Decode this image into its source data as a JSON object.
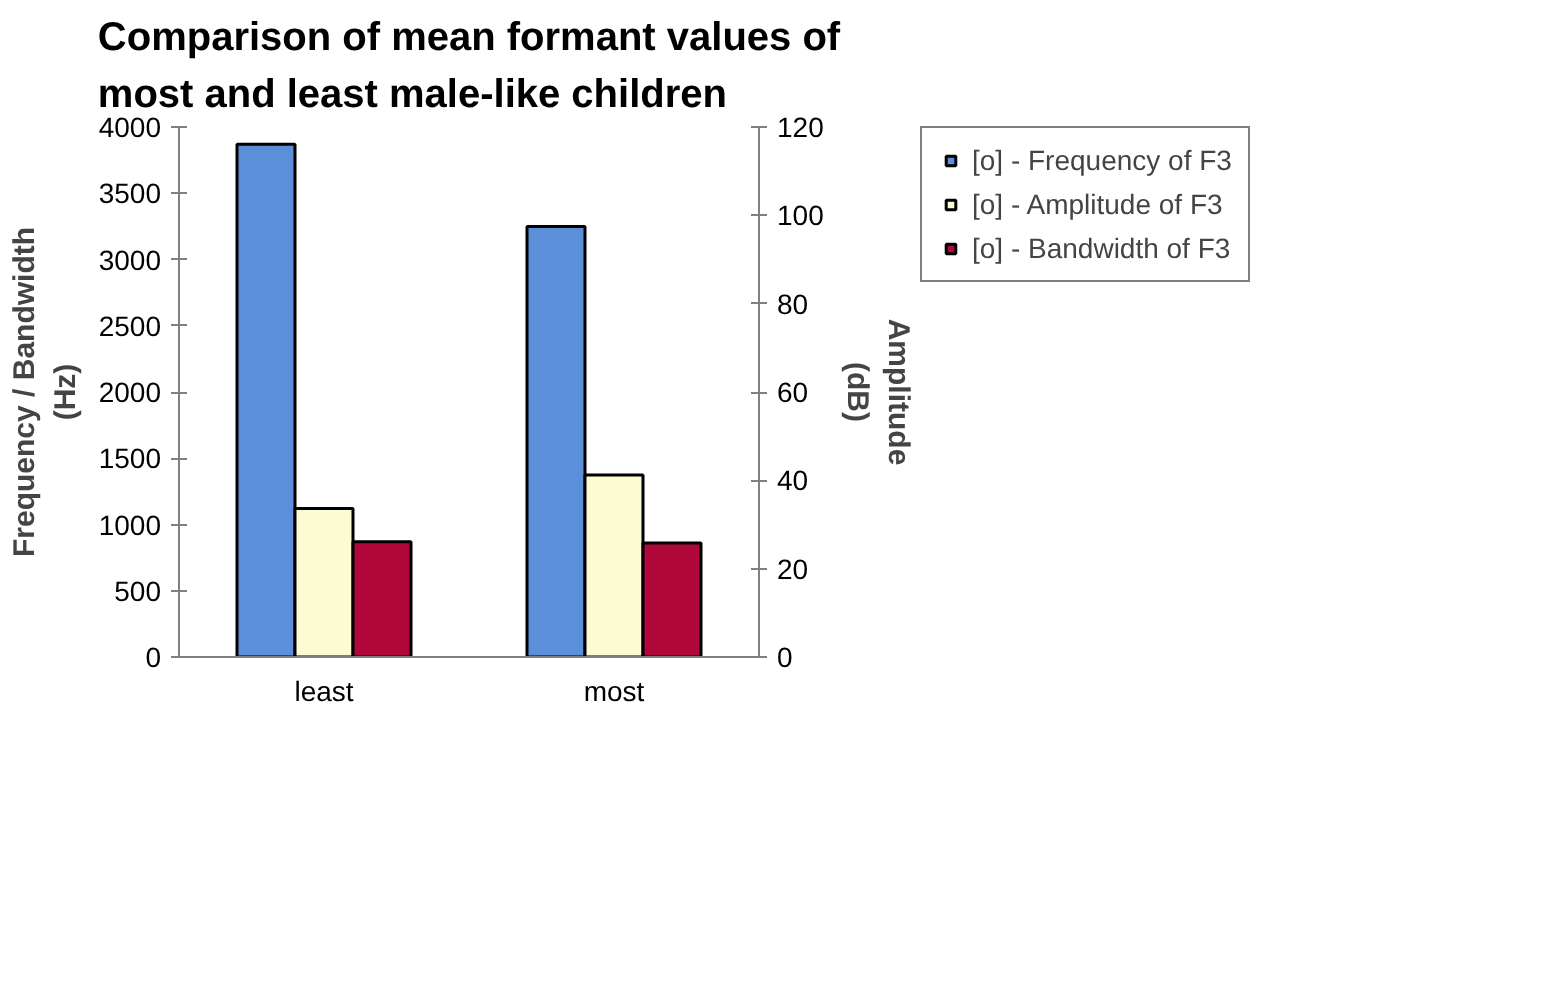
{
  "chart_data": {
    "type": "bar",
    "title": "Comparison of mean formant values of\nmost and least male-like children",
    "xlabel": null,
    "ylabel": "Frequency / Bandwidth\n(Hz)",
    "y2label": "Amplitude\n(dB)",
    "categories": [
      "least",
      "most"
    ],
    "series": [
      {
        "name": "[o] - Frequency of F3",
        "color": "#5b8fd9",
        "values": [
          3870,
          3250
        ]
      },
      {
        "name": "[o] - Amplitude of F3",
        "color": "#fdfbd4",
        "values": [
          33.6,
          41.2
        ],
        "axis": "y2"
      },
      {
        "name": "[o] - Bandwidth of F3",
        "color": "#b0083a",
        "values": [
          870,
          860
        ]
      }
    ],
    "ylim": [
      0,
      4000
    ],
    "yticks": [
      0,
      500,
      1000,
      1500,
      2000,
      2500,
      3000,
      3500,
      4000
    ],
    "y2lim": [
      0,
      120
    ],
    "y2ticks": [
      0,
      20,
      40,
      60,
      80,
      100,
      120
    ],
    "grid": false,
    "legend": "right"
  }
}
